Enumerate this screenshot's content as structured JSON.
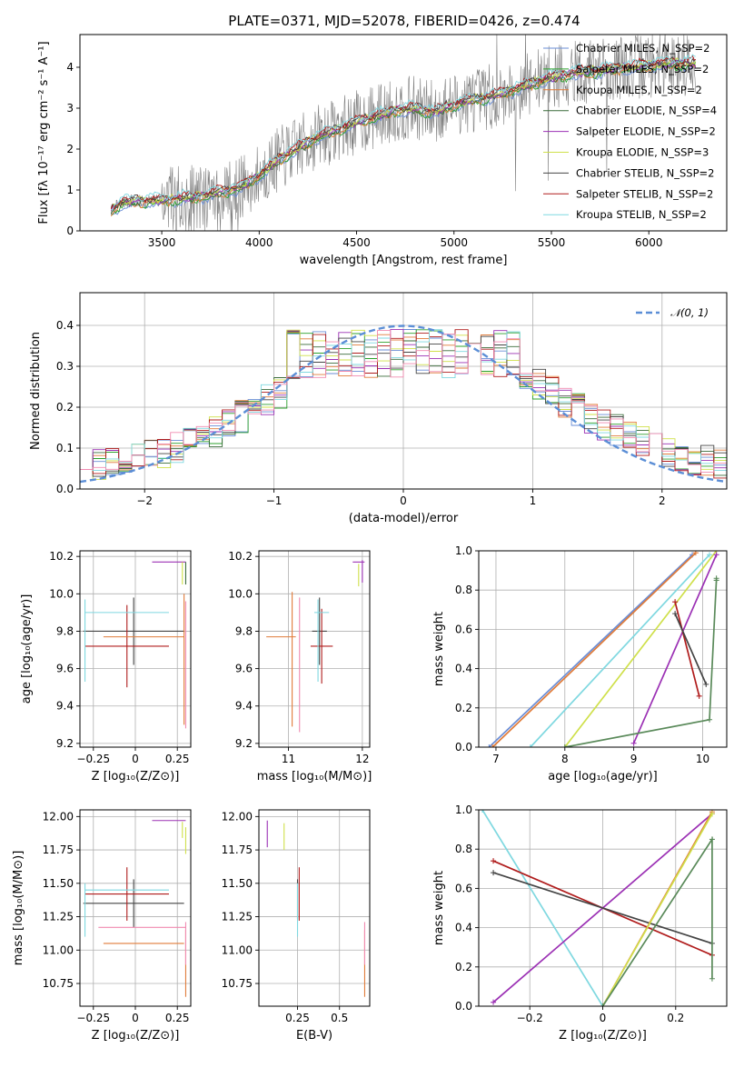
{
  "figure": {
    "title": "PLATE=0371, MJD=52078, FIBERID=0426, z=0.474"
  },
  "chart_data": [
    {
      "id": "spectrum",
      "type": "line",
      "title": "",
      "xlabel": "wavelength [Angstrom, rest frame]",
      "ylabel": "Flux [fλ 10⁻¹⁷ erg cm⁻² s⁻¹ A⁻¹]",
      "xlim": [
        3080,
        6400
      ],
      "ylim": [
        0,
        4.8
      ],
      "xticks": [
        3500,
        4000,
        4500,
        5000,
        5500,
        6000
      ],
      "yticks": [
        0,
        1,
        2,
        3,
        4
      ],
      "grid": false,
      "legend": "top-right",
      "data_range_x": [
        3240,
        6240
      ],
      "model_anchor": {
        "x": [
          3240,
          3300,
          3500,
          3700,
          3900,
          4000,
          4100,
          4300,
          4500,
          4700,
          4800,
          4900,
          5000,
          5100,
          5200,
          5300,
          5400,
          5500,
          5600,
          5700,
          5800,
          5900,
          6000,
          6100,
          6240
        ],
        "y": [
          0.5,
          0.7,
          0.75,
          0.85,
          1.05,
          1.35,
          1.75,
          2.3,
          2.65,
          2.95,
          3.0,
          2.9,
          3.1,
          3.2,
          3.3,
          3.45,
          3.6,
          3.75,
          3.85,
          3.9,
          3.95,
          4.0,
          4.05,
          4.1,
          4.1
        ]
      },
      "series": [
        {
          "name": "Chabrier MILES, N_SSP=2",
          "color": "#6a8dd6"
        },
        {
          "name": "Salpeter MILES, N_SSP=2",
          "color": "#2ca02c"
        },
        {
          "name": "Kroupa MILES, N_SSP=2",
          "color": "#e07b39"
        },
        {
          "name": "Chabrier ELODIE, N_SSP=4",
          "color": "#3a6b3a"
        },
        {
          "name": "Salpeter ELODIE, N_SSP=2",
          "color": "#9b30b4"
        },
        {
          "name": "Kroupa ELODIE, N_SSP=3",
          "color": "#cfe04a"
        },
        {
          "name": "Chabrier STELIB, N_SSP=2",
          "color": "#444444"
        },
        {
          "name": "Salpeter STELIB, N_SSP=2",
          "color": "#b01c1c"
        },
        {
          "name": "Kroupa STELIB, N_SSP=2",
          "color": "#7fd8e0"
        }
      ]
    },
    {
      "id": "residuals",
      "type": "line",
      "xlabel": "(data-model)/error",
      "ylabel": "Normed distribution",
      "xlim": [
        -2.5,
        2.5
      ],
      "ylim": [
        0,
        0.48
      ],
      "xticks": [
        -2,
        -1,
        0,
        1,
        2
      ],
      "yticks": [
        0.0,
        0.1,
        0.2,
        0.3,
        0.4
      ],
      "grid": true,
      "legend": "top-right",
      "gaussian_label": "𝒩(0, 1)",
      "gaussian_color": "#5b8ed6",
      "bin_width": 0.1
    },
    {
      "id": "age_vs_Z",
      "type": "scatter",
      "xlabel": "Z [log₁₀(Z/Z⊙)]",
      "ylabel": "age  [log₁₀(age/yr)]",
      "xlim": [
        -0.33,
        0.33
      ],
      "ylim": [
        9.18,
        10.23
      ],
      "xticks": [
        -0.25,
        0.0,
        0.25
      ],
      "yticks": [
        9.2,
        9.4,
        9.6,
        9.8,
        10.0,
        10.2
      ],
      "grid": true,
      "points": [
        {
          "x": -0.01,
          "y": 9.8,
          "ex": 0.3,
          "ey": 0.18,
          "color": "#444444"
        },
        {
          "x": -0.05,
          "y": 9.72,
          "ex": 0.25,
          "ey": 0.22,
          "color": "#b01c1c"
        },
        {
          "x": -0.05,
          "y": 9.9,
          "ex": 0.25,
          "ey": 0.0,
          "color": "#7fd8e0"
        },
        {
          "x": -0.3,
          "y": 9.75,
          "ex": 0.0,
          "ey": 0.22,
          "color": "#7fd8e0"
        },
        {
          "x": 0.05,
          "y": 9.77,
          "ex": 0.24,
          "ey": 0.0,
          "color": "#e07b39"
        },
        {
          "x": 0.29,
          "y": 9.65,
          "ex": 0.0,
          "ey": 0.35,
          "color": "#e07b39"
        },
        {
          "x": 0.3,
          "y": 9.62,
          "ex": 0.0,
          "ey": 0.34,
          "color": "#f08ab0"
        },
        {
          "x": 0.2,
          "y": 10.17,
          "ex": 0.1,
          "ey": 0.0,
          "color": "#9b30b4"
        },
        {
          "x": 0.28,
          "y": 10.11,
          "ex": 0.0,
          "ey": 0.06,
          "color": "#cfe04a"
        },
        {
          "x": 0.3,
          "y": 10.11,
          "ex": 0.0,
          "ey": 0.06,
          "color": "#3a6b3a"
        }
      ]
    },
    {
      "id": "age_vs_mass",
      "type": "scatter",
      "xlabel": "mass [log₁₀(M/M⊙)]",
      "ylabel": "",
      "xlim": [
        10.6,
        12.1
      ],
      "ylim": [
        9.18,
        10.23
      ],
      "xticks": [
        11,
        12
      ],
      "yticks": [
        9.2,
        9.4,
        9.6,
        9.8,
        10.0,
        10.2
      ],
      "grid": true,
      "points": [
        {
          "x": 11.42,
          "y": 9.8,
          "ex": 0.1,
          "ey": 0.18,
          "color": "#444444"
        },
        {
          "x": 11.45,
          "y": 9.72,
          "ex": 0.15,
          "ey": 0.2,
          "color": "#b01c1c"
        },
        {
          "x": 11.45,
          "y": 9.9,
          "ex": 0.1,
          "ey": 0.0,
          "color": "#7fd8e0"
        },
        {
          "x": 11.4,
          "y": 9.75,
          "ex": 0.0,
          "ey": 0.22,
          "color": "#7fd8e0"
        },
        {
          "x": 10.9,
          "y": 9.77,
          "ex": 0.2,
          "ey": 0.0,
          "color": "#e07b39"
        },
        {
          "x": 11.05,
          "y": 9.65,
          "ex": 0.0,
          "ey": 0.36,
          "color": "#e07b39"
        },
        {
          "x": 11.15,
          "y": 9.62,
          "ex": 0.0,
          "ey": 0.36,
          "color": "#f08ab0"
        },
        {
          "x": 11.95,
          "y": 10.17,
          "ex": 0.08,
          "ey": 0.0,
          "color": "#9b30b4"
        },
        {
          "x": 11.95,
          "y": 10.1,
          "ex": 0.0,
          "ey": 0.06,
          "color": "#cfe04a"
        },
        {
          "x": 12.0,
          "y": 10.12,
          "ex": 0.0,
          "ey": 0.06,
          "color": "#9b30b4"
        }
      ]
    },
    {
      "id": "weight_vs_age",
      "type": "line",
      "xlabel": "age  [log₁₀(age/yr)]",
      "ylabel": "mass weight",
      "xlim": [
        6.75,
        10.35
      ],
      "ylim": [
        0,
        1
      ],
      "xticks": [
        7,
        8,
        9,
        10
      ],
      "yticks": [
        0.0,
        0.2,
        0.4,
        0.6,
        0.8,
        1.0
      ],
      "grid": true,
      "lines": [
        {
          "x": [
            6.9,
            9.85
          ],
          "y": [
            0.0,
            0.98
          ],
          "color": "#6a8dd6"
        },
        {
          "x": [
            6.95,
            9.9
          ],
          "y": [
            0.0,
            0.99
          ],
          "color": "#e07b39"
        },
        {
          "x": [
            7.5,
            10.1
          ],
          "y": [
            0.0,
            0.98
          ],
          "color": "#7fd8e0"
        },
        {
          "x": [
            8.0,
            10.2
          ],
          "y": [
            0.0,
            1.0
          ],
          "color": "#cfe04a"
        },
        {
          "x": [
            9.0,
            10.2
          ],
          "y": [
            0.02,
            0.98
          ],
          "color": "#9b30b4"
        },
        {
          "x": [
            9.6,
            9.95
          ],
          "y": [
            0.74,
            0.26
          ],
          "color": "#b01c1c"
        },
        {
          "x": [
            9.6,
            10.05
          ],
          "y": [
            0.68,
            0.32
          ],
          "color": "#444444"
        },
        {
          "x": [
            8.0,
            10.1,
            10.2,
            10.2
          ],
          "y": [
            0.0,
            0.14,
            0.85,
            0.86
          ],
          "color": "#5a8a5a"
        }
      ]
    },
    {
      "id": "mass_vs_Z",
      "type": "scatter",
      "xlabel": "Z [log₁₀(Z/Z⊙)]",
      "ylabel": "mass [log₁₀(M/M⊙)]",
      "xlim": [
        -0.33,
        0.33
      ],
      "ylim": [
        10.58,
        12.05
      ],
      "xticks": [
        -0.25,
        0.0,
        0.25
      ],
      "yticks": [
        10.75,
        11.0,
        11.25,
        11.5,
        11.75,
        12.0
      ],
      "grid": true,
      "points": [
        {
          "x": -0.01,
          "y": 11.35,
          "ex": 0.3,
          "ey": 0.18,
          "color": "#444444"
        },
        {
          "x": -0.05,
          "y": 11.42,
          "ex": 0.25,
          "ey": 0.2,
          "color": "#b01c1c"
        },
        {
          "x": -0.05,
          "y": 11.45,
          "ex": 0.25,
          "ey": 0.0,
          "color": "#7fd8e0"
        },
        {
          "x": -0.3,
          "y": 11.3,
          "ex": 0.0,
          "ey": 0.2,
          "color": "#7fd8e0"
        },
        {
          "x": 0.05,
          "y": 11.05,
          "ex": 0.24,
          "ey": 0.0,
          "color": "#e07b39"
        },
        {
          "x": 0.3,
          "y": 10.9,
          "ex": 0.0,
          "ey": 0.25,
          "color": "#e07b39"
        },
        {
          "x": 0.04,
          "y": 11.17,
          "ex": 0.26,
          "ey": 0.0,
          "color": "#f08ab0"
        },
        {
          "x": 0.3,
          "y": 11.05,
          "ex": 0.0,
          "ey": 0.16,
          "color": "#f08ab0"
        },
        {
          "x": 0.2,
          "y": 11.97,
          "ex": 0.1,
          "ey": 0.0,
          "color": "#9b30b4"
        },
        {
          "x": 0.28,
          "y": 11.9,
          "ex": 0.0,
          "ey": 0.06,
          "color": "#cfe04a"
        },
        {
          "x": 0.3,
          "y": 11.82,
          "ex": 0.0,
          "ey": 0.1,
          "color": "#cfe04a"
        }
      ]
    },
    {
      "id": "mass_vs_ebv",
      "type": "scatter",
      "xlabel": "E(B-V)",
      "ylabel": "",
      "xlim": [
        0.02,
        0.68
      ],
      "ylim": [
        10.58,
        12.05
      ],
      "xticks": [
        0.25,
        0.5
      ],
      "yticks": [
        10.75,
        11.0,
        11.25,
        11.5,
        11.75,
        12.0
      ],
      "grid": true,
      "points": [
        {
          "x": 0.25,
          "y": 11.38,
          "ex": 0.0,
          "ey": 0.15,
          "color": "#444444"
        },
        {
          "x": 0.26,
          "y": 11.42,
          "ex": 0.0,
          "ey": 0.2,
          "color": "#b01c1c"
        },
        {
          "x": 0.25,
          "y": 11.3,
          "ex": 0.0,
          "ey": 0.2,
          "color": "#7fd8e0"
        },
        {
          "x": 0.65,
          "y": 10.9,
          "ex": 0.0,
          "ey": 0.25,
          "color": "#e07b39"
        },
        {
          "x": 0.65,
          "y": 11.05,
          "ex": 0.0,
          "ey": 0.16,
          "color": "#f08ab0"
        },
        {
          "x": 0.07,
          "y": 11.87,
          "ex": 0.0,
          "ey": 0.1,
          "color": "#9b30b4"
        },
        {
          "x": 0.17,
          "y": 11.85,
          "ex": 0.0,
          "ey": 0.1,
          "color": "#cfe04a"
        }
      ]
    },
    {
      "id": "weight_vs_Z",
      "type": "line",
      "xlabel": "Z [log₁₀(Z/Z⊙)]",
      "ylabel": "mass weight",
      "xlim": [
        -0.34,
        0.34
      ],
      "ylim": [
        0,
        1
      ],
      "xticks": [
        -0.2,
        0.0,
        0.2
      ],
      "yticks": [
        0.0,
        0.2,
        0.4,
        0.6,
        0.8,
        1.0
      ],
      "grid": true,
      "lines": [
        {
          "x": [
            -0.33,
            0.0
          ],
          "y": [
            1.0,
            0.0
          ],
          "color": "#7fd8e0"
        },
        {
          "x": [
            -0.3,
            0.3
          ],
          "y": [
            0.02,
            0.98
          ],
          "color": "#9b30b4"
        },
        {
          "x": [
            -0.3,
            0.3
          ],
          "y": [
            0.74,
            0.26
          ],
          "color": "#b01c1c"
        },
        {
          "x": [
            -0.3,
            0.3
          ],
          "y": [
            0.68,
            0.32
          ],
          "color": "#444444"
        },
        {
          "x": [
            0.0,
            0.3
          ],
          "y": [
            0.0,
            0.99
          ],
          "color": "#e07b39"
        },
        {
          "x": [
            0.0,
            0.3
          ],
          "y": [
            0.0,
            0.98
          ],
          "color": "#cfe04a"
        },
        {
          "x": [
            0.0,
            0.3,
            0.3
          ],
          "y": [
            0.0,
            0.85,
            0.14
          ],
          "color": "#5a8a5a"
        }
      ]
    }
  ]
}
